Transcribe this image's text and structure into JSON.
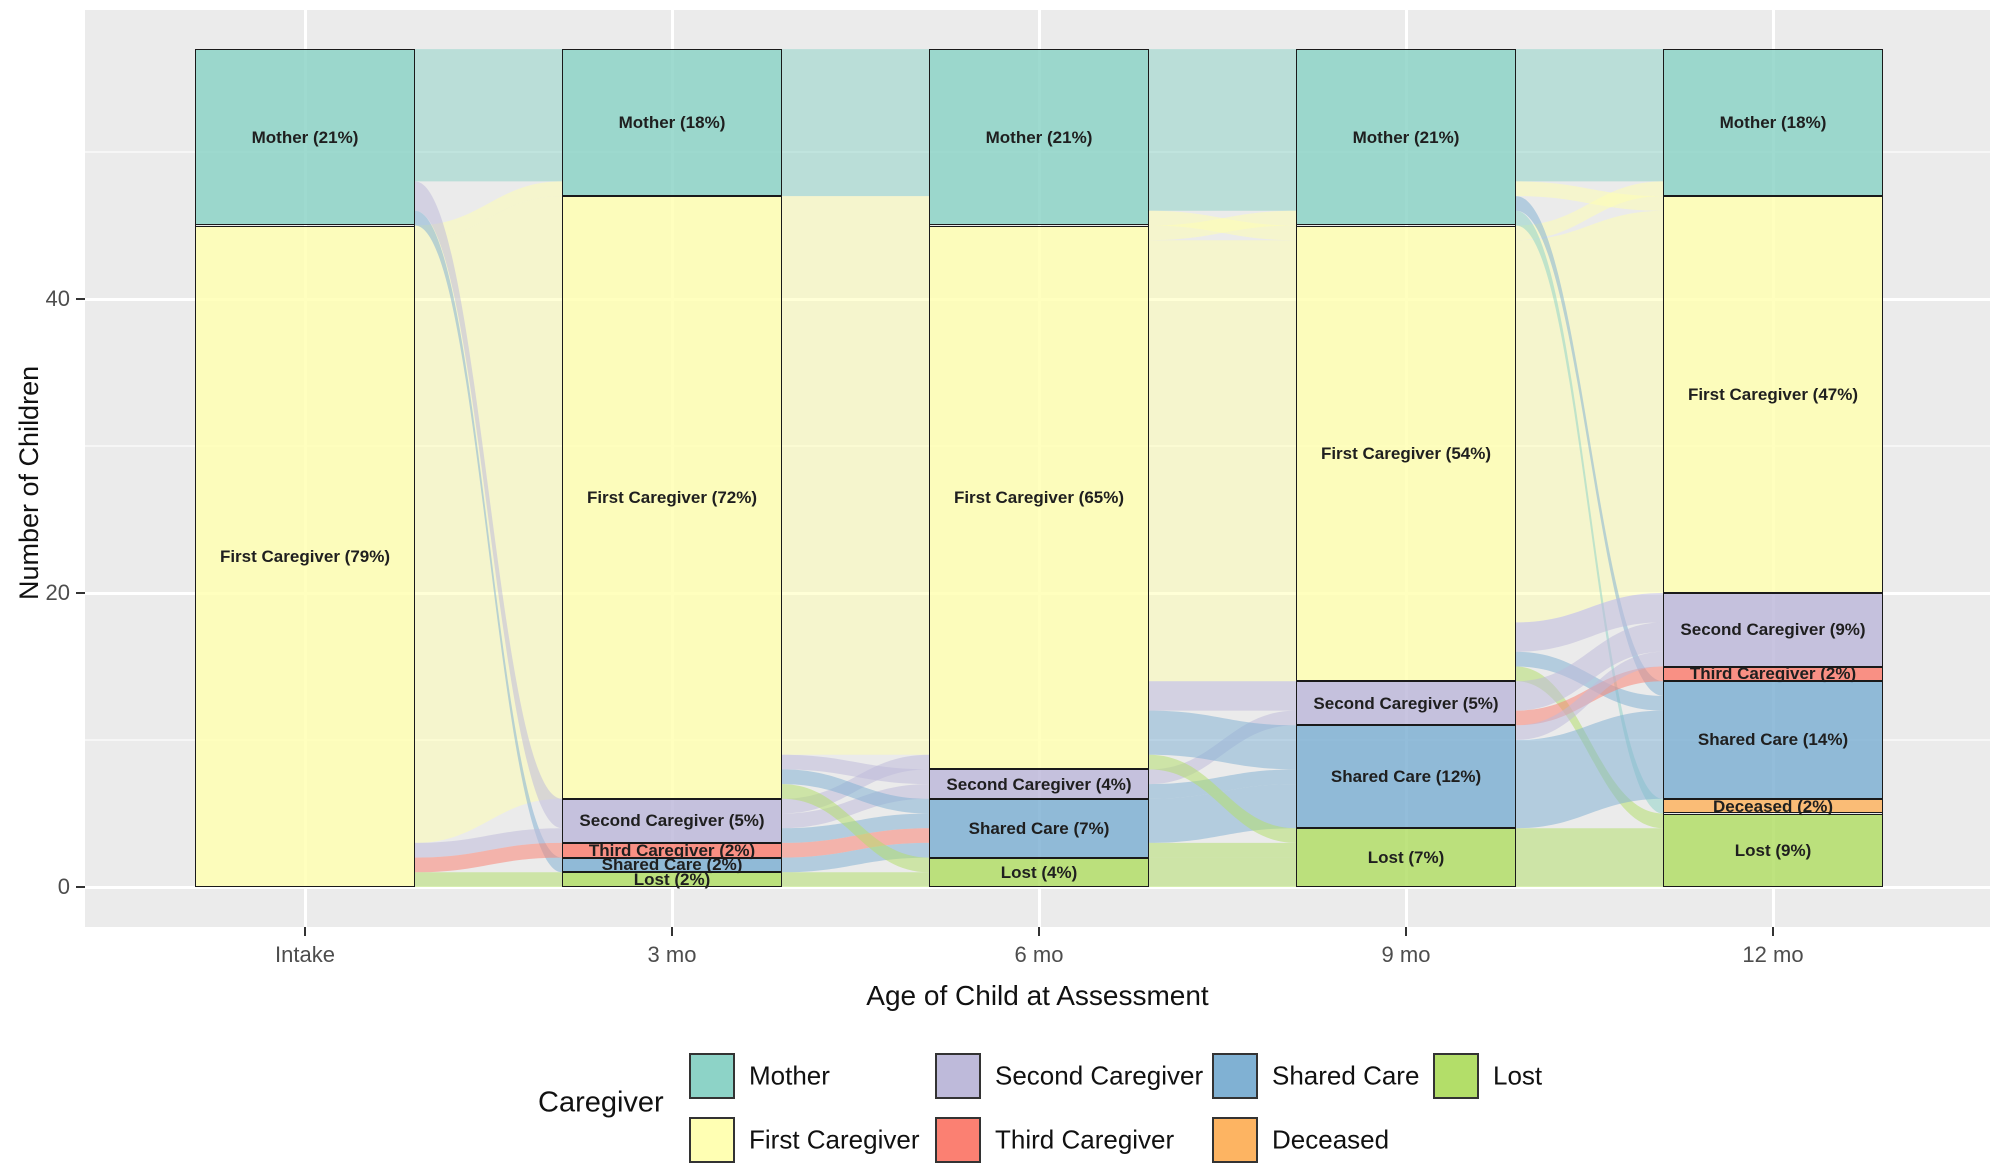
{
  "chart_data": {
    "type": "alluvial",
    "xlabel": "Age of Child at Assessment",
    "ylabel": "Number of Children",
    "y_ticks": [
      0,
      20,
      40
    ],
    "y_minor_ticks": [
      10,
      30,
      50
    ],
    "total_children": 57,
    "x_categories": [
      "Intake",
      "3 mo",
      "6 mo",
      "9 mo",
      "12 mo"
    ],
    "legend_title": "Caregiver",
    "panel_bg": "#EBEBEB",
    "categories": [
      {
        "name": "Mother",
        "color": "#8DD3C7"
      },
      {
        "name": "First Caregiver",
        "color": "#FFFFB3"
      },
      {
        "name": "Second Caregiver",
        "color": "#BEBADA"
      },
      {
        "name": "Third Caregiver",
        "color": "#FB8072"
      },
      {
        "name": "Shared Care",
        "color": "#80B1D3"
      },
      {
        "name": "Deceased",
        "color": "#FDB462"
      },
      {
        "name": "Lost",
        "color": "#B3DE69"
      }
    ],
    "legend_rows": [
      [
        "Mother",
        "Second Caregiver",
        "Shared Care",
        "Lost"
      ],
      [
        "First Caregiver",
        "Third Caregiver",
        "Deceased"
      ]
    ],
    "columns": [
      {
        "label": "Intake",
        "segments": [
          {
            "cat": "Mother",
            "label": "Mother (21%)",
            "pct": 21,
            "from": 45,
            "to": 57
          },
          {
            "cat": "First Caregiver",
            "label": "First Caregiver (79%)",
            "pct": 79,
            "from": 0,
            "to": 45
          }
        ]
      },
      {
        "label": "3 mo",
        "segments": [
          {
            "cat": "Mother",
            "label": "Mother (18%)",
            "pct": 18,
            "from": 47,
            "to": 57
          },
          {
            "cat": "First Caregiver",
            "label": "First Caregiver (72%)",
            "pct": 72,
            "from": 6,
            "to": 47
          },
          {
            "cat": "Second Caregiver",
            "label": "Second Caregiver (5%)",
            "pct": 5,
            "from": 3,
            "to": 6
          },
          {
            "cat": "Third Caregiver",
            "label": "Third Caregiver (2%)",
            "pct": 2,
            "from": 2,
            "to": 3
          },
          {
            "cat": "Shared Care",
            "label": "Shared Care (2%)",
            "pct": 2,
            "from": 1,
            "to": 2
          },
          {
            "cat": "Lost",
            "label": "Lost (2%)",
            "pct": 2,
            "from": 0,
            "to": 1
          }
        ]
      },
      {
        "label": "6 mo",
        "segments": [
          {
            "cat": "Mother",
            "label": "Mother (21%)",
            "pct": 21,
            "from": 45,
            "to": 57
          },
          {
            "cat": "First Caregiver",
            "label": "First Caregiver (65%)",
            "pct": 65,
            "from": 8,
            "to": 45
          },
          {
            "cat": "Second Caregiver",
            "label": "Second Caregiver (4%)",
            "pct": 4,
            "from": 6,
            "to": 8
          },
          {
            "cat": "Shared Care",
            "label": "Shared Care (7%)",
            "pct": 7,
            "from": 2,
            "to": 6
          },
          {
            "cat": "Lost",
            "label": "Lost (4%)",
            "pct": 4,
            "from": 0,
            "to": 2
          }
        ]
      },
      {
        "label": "9 mo",
        "segments": [
          {
            "cat": "Mother",
            "label": "Mother (21%)",
            "pct": 21,
            "from": 45,
            "to": 57
          },
          {
            "cat": "First Caregiver",
            "label": "First Caregiver (54%)",
            "pct": 54,
            "from": 14,
            "to": 45
          },
          {
            "cat": "Second Caregiver",
            "label": "Second Caregiver (5%)",
            "pct": 5,
            "from": 11,
            "to": 14
          },
          {
            "cat": "Shared Care",
            "label": "Shared Care (12%)",
            "pct": 12,
            "from": 4,
            "to": 11
          },
          {
            "cat": "Lost",
            "label": "Lost (7%)",
            "pct": 7,
            "from": 0,
            "to": 4
          }
        ]
      },
      {
        "label": "12 mo",
        "segments": [
          {
            "cat": "Mother",
            "label": "Mother (18%)",
            "pct": 18,
            "from": 47,
            "to": 57
          },
          {
            "cat": "First Caregiver",
            "label": "First Caregiver (47%)",
            "pct": 47,
            "from": 20,
            "to": 47
          },
          {
            "cat": "Second Caregiver",
            "label": "Second Caregiver (9%)",
            "pct": 9,
            "from": 15,
            "to": 20
          },
          {
            "cat": "Third Caregiver",
            "label": "Third Caregiver (2%)",
            "pct": 2,
            "from": 14,
            "to": 15
          },
          {
            "cat": "Shared Care",
            "label": "Shared Care (14%)",
            "pct": 14,
            "from": 6,
            "to": 14
          },
          {
            "cat": "Deceased",
            "label": "Deceased (2%)",
            "pct": 2,
            "from": 5,
            "to": 6
          },
          {
            "cat": "Lost",
            "label": "Lost (9%)",
            "pct": 9,
            "from": 0,
            "to": 5
          }
        ]
      }
    ],
    "flows": [
      {
        "gap": 0,
        "src": [
          48,
          57
        ],
        "dst": [
          48,
          57
        ],
        "color": "Mother"
      },
      {
        "gap": 0,
        "src": [
          3,
          44
        ],
        "dst": [
          6,
          47
        ],
        "color": "First Caregiver"
      },
      {
        "gap": 0,
        "src": [
          44,
          45
        ],
        "dst": [
          47,
          48
        ],
        "color": "First Caregiver"
      },
      {
        "gap": 0,
        "src": [
          46,
          48
        ],
        "dst": [
          4,
          6
        ],
        "color": "Second Caregiver"
      },
      {
        "gap": 0,
        "src": [
          45,
          46
        ],
        "dst": [
          1,
          2
        ],
        "color": "Shared Care"
      },
      {
        "gap": 0,
        "src": [
          2,
          3
        ],
        "dst": [
          3,
          4
        ],
        "color": "Second Caregiver"
      },
      {
        "gap": 0,
        "src": [
          1,
          2
        ],
        "dst": [
          2,
          3
        ],
        "color": "Third Caregiver"
      },
      {
        "gap": 0,
        "src": [
          0,
          1
        ],
        "dst": [
          0,
          1
        ],
        "color": "Lost"
      },
      {
        "gap": 1,
        "src": [
          47,
          57
        ],
        "dst": [
          47,
          57
        ],
        "color": "Mother"
      },
      {
        "gap": 1,
        "src": [
          45,
          47
        ],
        "dst": [
          45,
          47
        ],
        "color": "First Caregiver"
      },
      {
        "gap": 1,
        "src": [
          9,
          45
        ],
        "dst": [
          9,
          45
        ],
        "color": "First Caregiver"
      },
      {
        "gap": 1,
        "src": [
          5,
          6
        ],
        "dst": [
          8,
          9
        ],
        "color": "Second Caregiver"
      },
      {
        "gap": 1,
        "src": [
          8,
          9
        ],
        "dst": [
          7,
          8
        ],
        "color": "Second Caregiver"
      },
      {
        "gap": 1,
        "src": [
          4,
          5
        ],
        "dst": [
          6,
          7
        ],
        "color": "Second Caregiver"
      },
      {
        "gap": 1,
        "src": [
          7,
          8
        ],
        "dst": [
          5,
          6
        ],
        "color": "Shared Care"
      },
      {
        "gap": 1,
        "src": [
          3,
          4
        ],
        "dst": [
          4,
          5
        ],
        "color": "Shared Care"
      },
      {
        "gap": 1,
        "src": [
          2,
          3
        ],
        "dst": [
          3,
          4
        ],
        "color": "Third Caregiver"
      },
      {
        "gap": 1,
        "src": [
          1,
          2
        ],
        "dst": [
          2,
          3
        ],
        "color": "Shared Care"
      },
      {
        "gap": 1,
        "src": [
          6,
          7
        ],
        "dst": [
          1,
          2
        ],
        "color": "Lost"
      },
      {
        "gap": 1,
        "src": [
          0,
          1
        ],
        "dst": [
          0,
          1
        ],
        "color": "Lost"
      },
      {
        "gap": 2,
        "src": [
          46,
          57
        ],
        "dst": [
          46,
          57
        ],
        "color": "Mother"
      },
      {
        "gap": 2,
        "src": [
          45,
          46
        ],
        "dst": [
          44,
          45
        ],
        "color": "First Caregiver"
      },
      {
        "gap": 2,
        "src": [
          44,
          45
        ],
        "dst": [
          45,
          46
        ],
        "color": "First Caregiver"
      },
      {
        "gap": 2,
        "src": [
          14,
          44
        ],
        "dst": [
          14,
          44
        ],
        "color": "First Caregiver"
      },
      {
        "gap": 2,
        "src": [
          12,
          14
        ],
        "dst": [
          12,
          14
        ],
        "color": "Second Caregiver"
      },
      {
        "gap": 2,
        "src": [
          7,
          8
        ],
        "dst": [
          11,
          12
        ],
        "color": "Second Caregiver"
      },
      {
        "gap": 2,
        "src": [
          9,
          12
        ],
        "dst": [
          8,
          11
        ],
        "color": "Shared Care"
      },
      {
        "gap": 2,
        "src": [
          6,
          7
        ],
        "dst": [
          7,
          8
        ],
        "color": "Shared Care"
      },
      {
        "gap": 2,
        "src": [
          3,
          6
        ],
        "dst": [
          4,
          7
        ],
        "color": "Shared Care"
      },
      {
        "gap": 2,
        "src": [
          8,
          9
        ],
        "dst": [
          3,
          4
        ],
        "color": "Lost"
      },
      {
        "gap": 2,
        "src": [
          2,
          3
        ],
        "dst": [
          2,
          3
        ],
        "color": "Lost"
      },
      {
        "gap": 2,
        "src": [
          0,
          2
        ],
        "dst": [
          0,
          2
        ],
        "color": "Lost"
      },
      {
        "gap": 3,
        "src": [
          48,
          57
        ],
        "dst": [
          48,
          57
        ],
        "color": "Mother"
      },
      {
        "gap": 3,
        "src": [
          18,
          44
        ],
        "dst": [
          20,
          46
        ],
        "color": "First Caregiver"
      },
      {
        "gap": 3,
        "src": [
          47,
          48
        ],
        "dst": [
          46,
          47
        ],
        "color": "First Caregiver"
      },
      {
        "gap": 3,
        "src": [
          44,
          45
        ],
        "dst": [
          47,
          48
        ],
        "color": "First Caregiver"
      },
      {
        "gap": 3,
        "src": [
          45,
          46
        ],
        "dst": [
          5,
          6
        ],
        "color": "Mother"
      },
      {
        "gap": 3,
        "src": [
          46,
          47
        ],
        "dst": [
          13,
          14
        ],
        "color": "Shared Care"
      },
      {
        "gap": 3,
        "src": [
          16,
          18
        ],
        "dst": [
          18,
          20
        ],
        "color": "Second Caregiver"
      },
      {
        "gap": 3,
        "src": [
          15,
          16
        ],
        "dst": [
          12,
          13
        ],
        "color": "Shared Care"
      },
      {
        "gap": 3,
        "src": [
          14,
          15
        ],
        "dst": [
          4,
          5
        ],
        "color": "Lost"
      },
      {
        "gap": 3,
        "src": [
          12,
          14
        ],
        "dst": [
          16,
          18
        ],
        "color": "Second Caregiver"
      },
      {
        "gap": 3,
        "src": [
          11,
          12
        ],
        "dst": [
          14,
          15
        ],
        "color": "Third Caregiver"
      },
      {
        "gap": 3,
        "src": [
          10,
          11
        ],
        "dst": [
          15,
          16
        ],
        "color": "Second Caregiver"
      },
      {
        "gap": 3,
        "src": [
          4,
          10
        ],
        "dst": [
          6,
          12
        ],
        "color": "Shared Care"
      },
      {
        "gap": 3,
        "src": [
          0,
          4
        ],
        "dst": [
          0,
          4
        ],
        "color": "Lost"
      }
    ]
  }
}
